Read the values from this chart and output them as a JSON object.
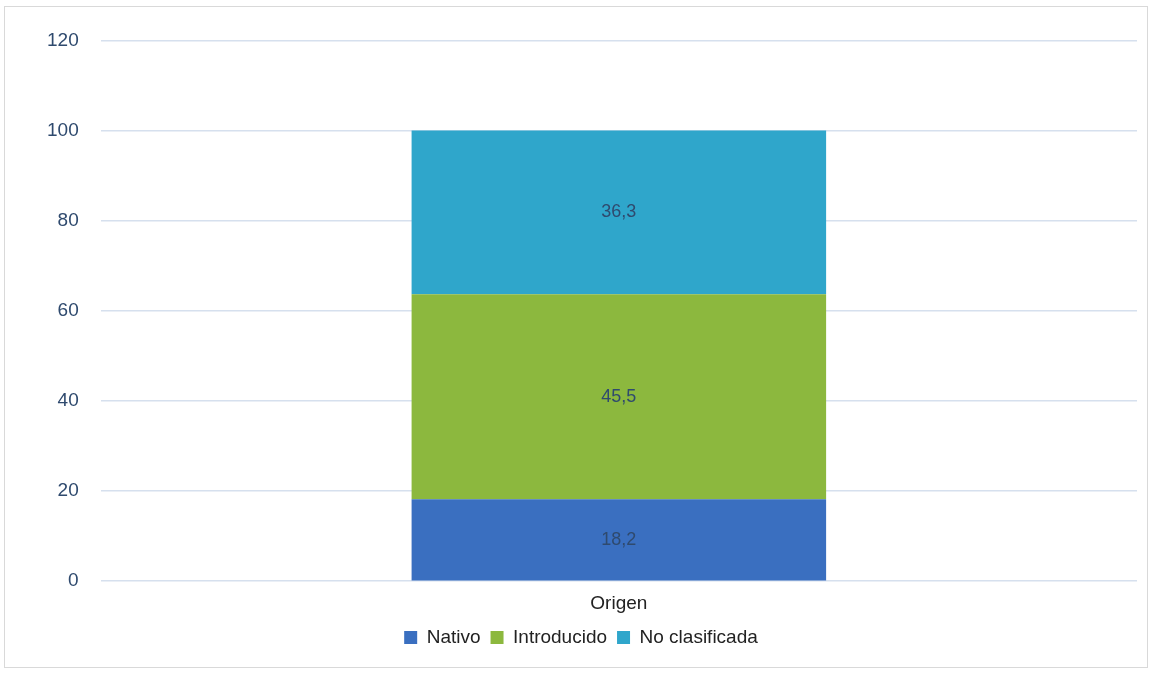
{
  "chart_data": {
    "type": "bar",
    "stacked": true,
    "categories": [
      "Origen"
    ],
    "series": [
      {
        "name": "Nativo",
        "color": "#3a6fc0",
        "values": [
          18.2
        ],
        "value_labels": [
          "18,2"
        ]
      },
      {
        "name": "Introducido",
        "color": "#8cb83e",
        "values": [
          45.5
        ],
        "value_labels": [
          "45,5"
        ]
      },
      {
        "name": "No clasificada",
        "color": "#2fa6cb",
        "values": [
          36.3
        ],
        "value_labels": [
          "36,3"
        ]
      }
    ],
    "ylim": [
      0,
      120
    ],
    "yticks": [
      0,
      20,
      40,
      60,
      80,
      100,
      120
    ],
    "grid": "y",
    "legend": "bottom"
  }
}
